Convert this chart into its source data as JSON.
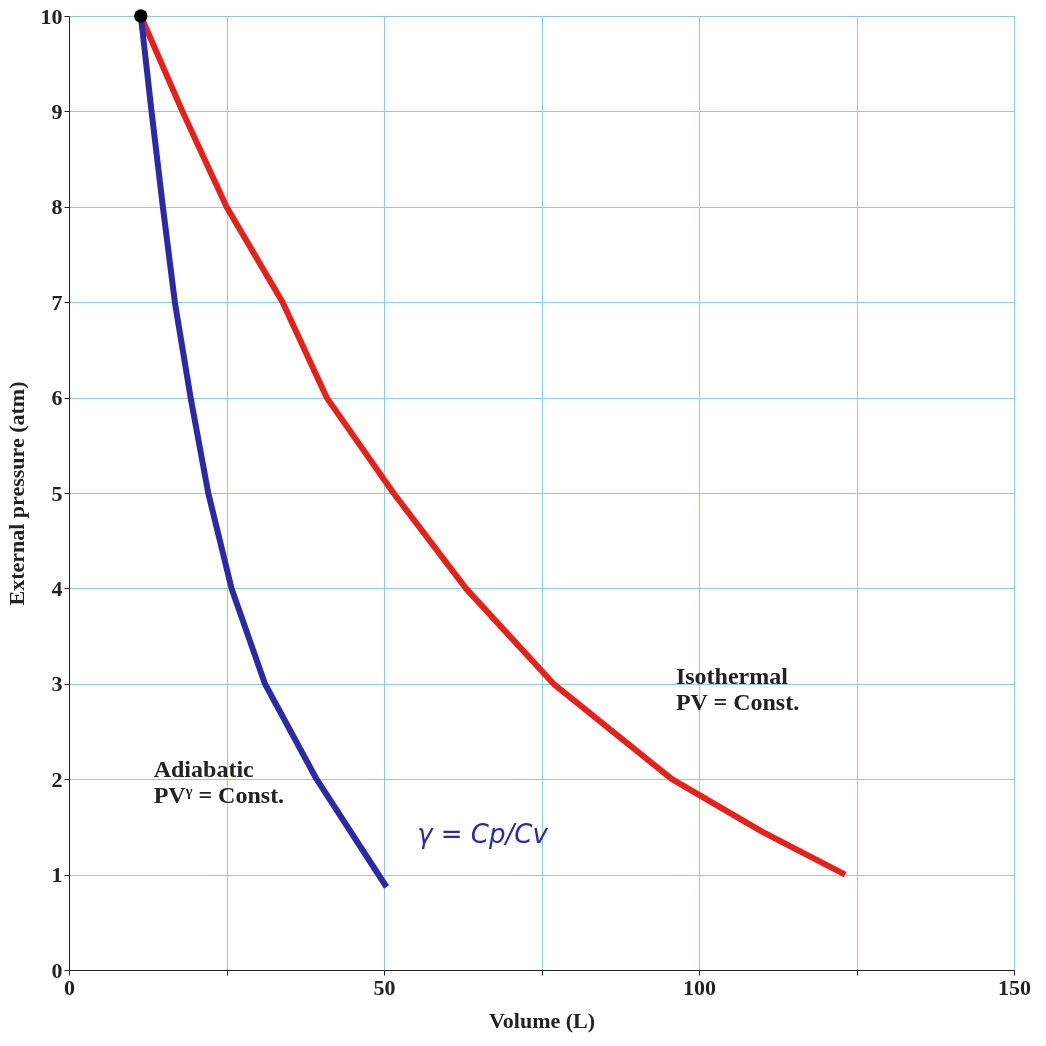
{
  "chart_data": {
    "type": "line",
    "xlabel": "Volume (L)",
    "ylabel": "External pressure (atm)",
    "xlim": [
      0,
      150
    ],
    "ylim": [
      0,
      10
    ],
    "xticks": [
      0,
      {
        "value": 25,
        "label": null
      },
      50,
      {
        "value": 75,
        "label": null
      },
      100,
      {
        "value": 125,
        "label": null
      },
      150
    ],
    "yticks": [
      0,
      1,
      2,
      3,
      4,
      5,
      6,
      7,
      8,
      9,
      10
    ],
    "grid": true,
    "line_style": "solid",
    "marker": "none",
    "series": [
      {
        "color": "#e8201a",
        "x": [
          11.4,
          18.0,
          25.0,
          33.9,
          40.9,
          51.5,
          63.0,
          76.9,
          95.7,
          110.0,
          123.2
        ],
        "values": [
          10,
          9,
          8,
          7,
          6,
          5,
          4,
          3,
          2,
          1.45,
          1.0
        ]
      },
      {
        "color": "#2a2aa8",
        "x": [
          11.4,
          13.1,
          14.9,
          16.8,
          19.3,
          22.1,
          25.8,
          31.1,
          39.3,
          50.4
        ],
        "values": [
          10,
          9,
          8,
          7,
          6,
          5,
          4,
          3,
          2,
          0.87
        ]
      },
      {
        "type": "scatter",
        "color": "#000000",
        "marker": "circle",
        "x": [
          11.4
        ],
        "values": [
          10
        ]
      }
    ],
    "annotations": [
      "Isothermal\nPV = Const.",
      "Adiabatic\nPVᵞ = Const.",
      "γ = Cp/Cv"
    ]
  }
}
